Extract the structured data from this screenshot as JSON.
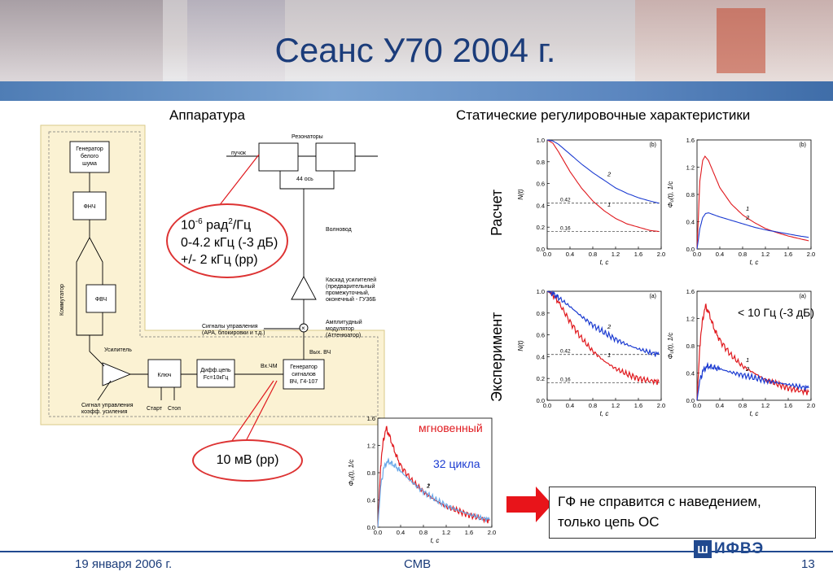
{
  "slide": {
    "title": "Сеанс У70 2004 г.",
    "left_heading": "Аппаратура",
    "right_heading": "Статические регулировочные характеристики",
    "row_label_calc": "Расчет",
    "row_label_exp": "Эксперимент",
    "footer_date": "19 января 2006 г.",
    "footer_center": "СМВ",
    "page_number": "13",
    "logo_text": "ИФВЭ"
  },
  "diagram": {
    "gen_white_noise": [
      "Генератор",
      "белого",
      "шума"
    ],
    "fnch": "ФНЧ",
    "fvch": "ФВЧ",
    "commutator": "Коммутатор",
    "amplifier": "Усилитель",
    "key": "Ключ",
    "diff_chain": [
      "Дифф.цепь",
      "Fc=10кГц"
    ],
    "gain_control": [
      "Сигнал управления",
      "коэфф. усиления"
    ],
    "start": "Старт",
    "stop": "Стоп",
    "vx_chm": "Вх.ЧМ",
    "signal_gen": [
      "Генератор",
      "сигналов",
      "ВЧ, Г4-107"
    ],
    "vyx_vch": "Вых. ВЧ",
    "resonators": "Резонаторы",
    "beam": "пучок",
    "axis44": "44 ось",
    "waveguide": "Волновод",
    "amp_cascade": [
      "Каскад усилителей",
      "(предварительный",
      "промежуточный,",
      "оконечный - ГУ36Б"
    ],
    "am_modulator": [
      "Амплитудный",
      "модулятор",
      "(Аттенюатор)"
    ],
    "control_signals": [
      "Сигналы управления",
      "(АРА, блокировки и т.д.)"
    ]
  },
  "bubbles": {
    "noise_line1_base": "10",
    "noise_line1_exp": "-6",
    "noise_line1_unit": " рад",
    "noise_line1_sq": "2",
    "noise_line1_tail": "/Гц",
    "noise_line2": "0-4.2 кГц (-3 дБ)",
    "noise_line3": "+/- 2 кГц (pp)",
    "voltage": "10 мВ (pp)"
  },
  "annotations": {
    "instant": "мгновенный",
    "cycles": "32 цикла",
    "lt10": "< 10 Гц (-3 дБ)",
    "callout_line1": "ГФ не справится с наведением,",
    "callout_line2": "только цепь ОС"
  },
  "colors": {
    "title": "#1b3c7a",
    "red": "#e0191e",
    "blue": "#1b3bd1",
    "light_blue": "#6aa8e8",
    "panel_bg": "#fbf2d3"
  },
  "chart_data": [
    {
      "id": "calc-N",
      "type": "line",
      "tag": "(b)",
      "ylabel": "N(t)",
      "xlabel": "t, c",
      "xlim": [
        0,
        2.0
      ],
      "ylim": [
        0,
        1.0
      ],
      "xticks": [
        "0.0",
        "0.4",
        "0.8",
        "1.2",
        "1.6",
        "2.0"
      ],
      "yticks": [
        "0.0",
        "0.2",
        "0.4",
        "0.6",
        "0.8",
        "1.0"
      ],
      "ref_lines": [
        {
          "y": 0.42,
          "label": "0.42"
        },
        {
          "y": 0.16,
          "label": "0.16"
        }
      ],
      "series": [
        {
          "name": "1",
          "x": [
            0,
            0.1,
            0.2,
            0.4,
            0.6,
            0.8,
            1.0,
            1.2,
            1.4,
            1.6,
            1.8,
            1.96
          ],
          "y": [
            1.0,
            0.97,
            0.89,
            0.71,
            0.56,
            0.44,
            0.35,
            0.28,
            0.23,
            0.2,
            0.17,
            0.16
          ]
        },
        {
          "name": "2",
          "x": [
            0,
            0.1,
            0.2,
            0.4,
            0.6,
            0.8,
            1.0,
            1.2,
            1.4,
            1.6,
            1.8,
            1.96
          ],
          "y": [
            1.0,
            0.99,
            0.96,
            0.87,
            0.78,
            0.7,
            0.63,
            0.56,
            0.51,
            0.47,
            0.44,
            0.42
          ]
        }
      ]
    },
    {
      "id": "calc-phi",
      "type": "line",
      "tag": "(b)",
      "ylabel": "Φ₀(t), 1/c",
      "xlabel": "t, c",
      "xlim": [
        0,
        2.0
      ],
      "ylim": [
        0,
        1.6
      ],
      "xticks": [
        "0.0",
        "0.4",
        "0.8",
        "1.2",
        "1.6",
        "2.0"
      ],
      "yticks": [
        "0.0",
        "0.4",
        "0.8",
        "1.2",
        "1.6"
      ],
      "series": [
        {
          "name": "1",
          "x": [
            0,
            0.05,
            0.1,
            0.14,
            0.2,
            0.3,
            0.4,
            0.6,
            0.8,
            1.0,
            1.2,
            1.4,
            1.6,
            1.8,
            1.96
          ],
          "y": [
            0,
            1.0,
            1.3,
            1.36,
            1.3,
            1.1,
            0.9,
            0.66,
            0.5,
            0.39,
            0.3,
            0.24,
            0.19,
            0.15,
            0.12
          ]
        },
        {
          "name": "2",
          "x": [
            0,
            0.05,
            0.1,
            0.15,
            0.2,
            0.3,
            0.4,
            0.6,
            0.8,
            1.0,
            1.2,
            1.4,
            1.6,
            1.8,
            1.96
          ],
          "y": [
            0,
            0.3,
            0.46,
            0.52,
            0.53,
            0.5,
            0.47,
            0.42,
            0.37,
            0.32,
            0.28,
            0.25,
            0.22,
            0.19,
            0.17
          ]
        }
      ]
    },
    {
      "id": "exp-N",
      "type": "line",
      "tag": "(a)",
      "ylabel": "N(t)",
      "xlabel": "t, c",
      "xlim": [
        0,
        2.0
      ],
      "ylim": [
        0,
        1.0
      ],
      "xticks": [
        "0.0",
        "0.4",
        "0.8",
        "1.2",
        "1.6",
        "2.0"
      ],
      "yticks": [
        "0.0",
        "0.2",
        "0.4",
        "0.6",
        "0.8",
        "1.0"
      ],
      "ref_lines": [
        {
          "y": 0.42,
          "label": "0.42"
        },
        {
          "y": 0.16,
          "label": "0.16"
        }
      ],
      "series": [
        {
          "name": "1",
          "x": [
            0,
            0.1,
            0.2,
            0.4,
            0.6,
            0.8,
            1.0,
            1.2,
            1.4,
            1.6,
            1.8,
            1.96
          ],
          "y": [
            1.0,
            0.97,
            0.9,
            0.72,
            0.57,
            0.45,
            0.36,
            0.29,
            0.24,
            0.2,
            0.18,
            0.17
          ]
        },
        {
          "name": "2",
          "x": [
            0,
            0.1,
            0.2,
            0.4,
            0.6,
            0.8,
            1.0,
            1.2,
            1.4,
            1.6,
            1.8,
            1.96
          ],
          "y": [
            1.0,
            0.98,
            0.94,
            0.86,
            0.77,
            0.69,
            0.62,
            0.56,
            0.51,
            0.47,
            0.44,
            0.42
          ]
        }
      ]
    },
    {
      "id": "exp-phi",
      "type": "line",
      "tag": "(a)",
      "ylabel": "Φ₀(t), 1/c",
      "xlabel": "t, c",
      "xlim": [
        0,
        2.0
      ],
      "ylim": [
        0,
        1.6
      ],
      "xticks": [
        "0.0",
        "0.4",
        "0.8",
        "1.2",
        "1.6",
        "2.0"
      ],
      "yticks": [
        "0.0",
        "0.4",
        "0.8",
        "1.2",
        "1.6"
      ],
      "series": [
        {
          "name": "1",
          "x": [
            0,
            0.05,
            0.1,
            0.15,
            0.2,
            0.3,
            0.4,
            0.6,
            0.8,
            1.0,
            1.2,
            1.4,
            1.6,
            1.8,
            1.96
          ],
          "y": [
            0,
            0.8,
            1.2,
            1.38,
            1.3,
            1.05,
            0.88,
            0.66,
            0.5,
            0.4,
            0.3,
            0.24,
            0.18,
            0.14,
            0.12
          ]
        },
        {
          "name": "2",
          "x": [
            0,
            0.05,
            0.1,
            0.15,
            0.2,
            0.3,
            0.4,
            0.6,
            0.8,
            1.0,
            1.2,
            1.4,
            1.6,
            1.8,
            1.96
          ],
          "y": [
            0,
            0.3,
            0.42,
            0.48,
            0.5,
            0.48,
            0.46,
            0.41,
            0.37,
            0.33,
            0.29,
            0.26,
            0.23,
            0.2,
            0.18
          ]
        }
      ]
    },
    {
      "id": "cycles-phi",
      "type": "line",
      "ylabel": "Φ₀(t), 1/c",
      "xlabel": "t, c",
      "xlim": [
        0,
        2.0
      ],
      "ylim": [
        0,
        1.6
      ],
      "xticks": [
        "0.0",
        "0.4",
        "0.8",
        "1.2",
        "1.6",
        "2.0"
      ],
      "yticks": [
        "0.0",
        "0.4",
        "0.8",
        "1.2",
        "1.6"
      ],
      "series": [
        {
          "name": "2",
          "x": [
            0,
            0.05,
            0.1,
            0.15,
            0.2,
            0.3,
            0.4,
            0.6,
            0.8,
            1.0,
            1.2,
            1.4,
            1.6,
            1.8,
            1.96
          ],
          "y": [
            0,
            0.9,
            1.3,
            1.45,
            1.35,
            1.1,
            0.9,
            0.68,
            0.52,
            0.4,
            0.3,
            0.24,
            0.18,
            0.13,
            0.1
          ]
        },
        {
          "name": "1",
          "x": [
            0,
            0.05,
            0.1,
            0.15,
            0.2,
            0.3,
            0.4,
            0.6,
            0.8,
            1.0,
            1.2,
            1.4,
            1.6,
            1.8,
            1.96
          ],
          "y": [
            0,
            0.6,
            0.85,
            0.95,
            0.96,
            0.9,
            0.82,
            0.66,
            0.52,
            0.41,
            0.32,
            0.25,
            0.19,
            0.14,
            0.11
          ]
        }
      ],
      "tick_marks": [
        "1",
        "2"
      ]
    }
  ]
}
